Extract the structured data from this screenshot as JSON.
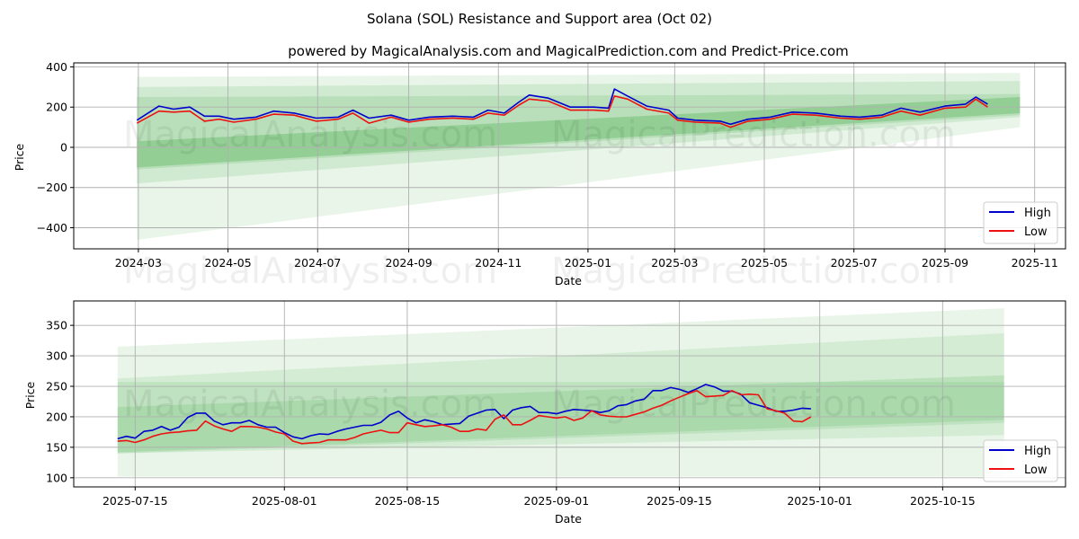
{
  "figure": {
    "suptitle": "Solana (SOL) Resistance and Support area (Oct 02)",
    "subtitle": "powered by MagicalAnalysis.com and MagicalPrediction.com and Predict-Price.com",
    "watermarks": [
      "MagicalAnalysis.com",
      "MagicalPrediction.com"
    ]
  },
  "colors": {
    "high": "#0000cc",
    "low": "#ee1111",
    "band": "#4caf50",
    "grid": "#b0b0b0"
  },
  "chart_data": [
    {
      "type": "line",
      "title": "",
      "xlabel": "Date",
      "ylabel": "Price",
      "ylim": [
        -505,
        420
      ],
      "xlim": [
        "2024-01-17",
        "2025-11-22"
      ],
      "grid": true,
      "legend": {
        "position": "lower-right",
        "entries": [
          "High",
          "Low"
        ]
      },
      "x_ticks": [
        "2024-03",
        "2024-05",
        "2024-07",
        "2024-09",
        "2024-11",
        "2025-01",
        "2025-03",
        "2025-05",
        "2025-07",
        "2025-09",
        "2025-11"
      ],
      "y_ticks": [
        400,
        200,
        0,
        -200,
        -400
      ],
      "x": [
        "2024-02-29",
        "2024-03-15",
        "2024-03-25",
        "2024-04-05",
        "2024-04-15",
        "2024-04-25",
        "2024-05-05",
        "2024-05-20",
        "2024-06-01",
        "2024-06-15",
        "2024-06-30",
        "2024-07-15",
        "2024-07-25",
        "2024-08-05",
        "2024-08-20",
        "2024-09-01",
        "2024-09-15",
        "2024-10-01",
        "2024-10-15",
        "2024-10-25",
        "2024-11-05",
        "2024-11-15",
        "2024-11-22",
        "2024-12-05",
        "2024-12-20",
        "2025-01-05",
        "2025-01-15",
        "2025-01-19",
        "2025-01-28",
        "2025-02-10",
        "2025-02-25",
        "2025-03-03",
        "2025-03-15",
        "2025-04-01",
        "2025-04-08",
        "2025-04-20",
        "2025-05-05",
        "2025-05-20",
        "2025-06-05",
        "2025-06-22",
        "2025-07-05",
        "2025-07-20",
        "2025-08-02",
        "2025-08-15",
        "2025-09-01",
        "2025-09-15",
        "2025-09-22",
        "2025-09-30"
      ],
      "series": [
        {
          "name": "High",
          "values": [
            135,
            205,
            190,
            200,
            155,
            155,
            140,
            150,
            180,
            170,
            145,
            150,
            185,
            145,
            160,
            135,
            150,
            155,
            150,
            185,
            170,
            225,
            260,
            245,
            200,
            200,
            195,
            290,
            255,
            205,
            185,
            145,
            135,
            130,
            115,
            140,
            150,
            175,
            170,
            155,
            150,
            160,
            195,
            175,
            205,
            215,
            250,
            215
          ]
        },
        {
          "name": "Low",
          "values": [
            120,
            180,
            175,
            180,
            130,
            140,
            125,
            140,
            165,
            160,
            130,
            140,
            170,
            120,
            150,
            125,
            140,
            145,
            140,
            170,
            160,
            210,
            240,
            230,
            185,
            185,
            180,
            255,
            240,
            190,
            170,
            135,
            125,
            120,
            100,
            130,
            140,
            165,
            160,
            145,
            140,
            150,
            180,
            160,
            195,
            200,
            240,
            200
          ]
        }
      ],
      "bands": [
        {
          "name": "outer-upper",
          "start": [
            "2024-02-29",
            350
          ],
          "end": [
            "2025-10-22",
            370
          ],
          "lower_start": 100,
          "lower_end": 100
        },
        {
          "name": "outer-lower",
          "start": [
            "2024-02-29",
            -460
          ],
          "end": [
            "2025-10-22",
            100
          ]
        },
        {
          "name": "mid-1",
          "upper_start": 300,
          "upper_end": 330,
          "lower_start": -180,
          "lower_end": 150
        },
        {
          "name": "mid-2",
          "upper_start": 250,
          "upper_end": 265,
          "lower_start": -110,
          "lower_end": 160
        },
        {
          "name": "core",
          "upper_start": 30,
          "upper_end": 250,
          "lower_start": -100,
          "lower_end": 170
        }
      ]
    },
    {
      "type": "line",
      "title": "",
      "xlabel": "Date",
      "ylabel": "Price",
      "ylim": [
        85,
        390
      ],
      "xlim": [
        "2025-07-08",
        "2025-10-29"
      ],
      "grid": true,
      "legend": {
        "position": "lower-right",
        "entries": [
          "High",
          "Low"
        ]
      },
      "x_ticks": [
        "2025-07-15",
        "2025-08-01",
        "2025-08-15",
        "2025-09-01",
        "2025-09-15",
        "2025-10-01",
        "2025-10-15"
      ],
      "y_ticks": [
        100,
        150,
        200,
        250,
        300,
        350
      ],
      "x": [
        "2025-07-13",
        "2025-07-14",
        "2025-07-15",
        "2025-07-16",
        "2025-07-17",
        "2025-07-18",
        "2025-07-19",
        "2025-07-20",
        "2025-07-21",
        "2025-07-22",
        "2025-07-23",
        "2025-07-24",
        "2025-07-25",
        "2025-07-26",
        "2025-07-27",
        "2025-07-28",
        "2025-07-29",
        "2025-07-30",
        "2025-07-31",
        "2025-08-01",
        "2025-08-02",
        "2025-08-03",
        "2025-08-04",
        "2025-08-05",
        "2025-08-06",
        "2025-08-07",
        "2025-08-08",
        "2025-08-09",
        "2025-08-10",
        "2025-08-11",
        "2025-08-12",
        "2025-08-13",
        "2025-08-14",
        "2025-08-15",
        "2025-08-16",
        "2025-08-17",
        "2025-08-18",
        "2025-08-19",
        "2025-08-20",
        "2025-08-21",
        "2025-08-22",
        "2025-08-23",
        "2025-08-24",
        "2025-08-25",
        "2025-08-26",
        "2025-08-27",
        "2025-08-28",
        "2025-08-29",
        "2025-08-30",
        "2025-08-31",
        "2025-09-01",
        "2025-09-02",
        "2025-09-03",
        "2025-09-04",
        "2025-09-05",
        "2025-09-06",
        "2025-09-07",
        "2025-09-08",
        "2025-09-09",
        "2025-09-10",
        "2025-09-11",
        "2025-09-12",
        "2025-09-13",
        "2025-09-14",
        "2025-09-15",
        "2025-09-16",
        "2025-09-17",
        "2025-09-18",
        "2025-09-19",
        "2025-09-20",
        "2025-09-21",
        "2025-09-22",
        "2025-09-23",
        "2025-09-24",
        "2025-09-25",
        "2025-09-26",
        "2025-09-27",
        "2025-09-28",
        "2025-09-29",
        "2025-09-30"
      ],
      "series": [
        {
          "name": "High",
          "values": [
            164,
            168,
            165,
            176,
            178,
            184,
            178,
            183,
            199,
            206,
            206,
            193,
            187,
            190,
            190,
            194,
            187,
            183,
            183,
            174,
            167,
            164,
            169,
            172,
            171,
            176,
            180,
            183,
            186,
            186,
            191,
            203,
            209,
            198,
            190,
            195,
            192,
            187,
            188,
            189,
            201,
            206,
            211,
            212,
            197,
            211,
            215,
            217,
            207,
            207,
            205,
            209,
            212,
            211,
            210,
            207,
            210,
            218,
            220,
            226,
            229,
            243,
            243,
            248,
            245,
            240,
            246,
            253,
            249,
            242,
            242,
            237,
            223,
            219,
            215,
            209,
            209,
            211,
            214,
            213
          ]
        },
        {
          "name": "Low",
          "values": [
            160,
            161,
            158,
            162,
            168,
            172,
            174,
            175,
            177,
            178,
            193,
            185,
            180,
            176,
            184,
            184,
            183,
            180,
            175,
            172,
            160,
            156,
            157,
            158,
            162,
            162,
            162,
            166,
            172,
            175,
            178,
            174,
            174,
            190,
            187,
            184,
            185,
            187,
            183,
            176,
            176,
            180,
            178,
            196,
            203,
            187,
            187,
            194,
            202,
            200,
            198,
            200,
            194,
            198,
            210,
            203,
            201,
            200,
            200,
            204,
            208,
            214,
            219,
            226,
            232,
            238,
            243,
            233,
            234,
            235,
            243,
            236,
            237,
            236,
            213,
            210,
            206,
            193,
            192,
            200
          ]
        }
      ],
      "bands": [
        {
          "name": "outer",
          "upper_start": 315,
          "upper_end": 378,
          "lower_start": 102,
          "lower_end": 102
        },
        {
          "name": "mid-1",
          "upper_start": 263,
          "upper_end": 337,
          "lower_start": 140,
          "lower_end": 170
        },
        {
          "name": "mid-2",
          "upper_start": 257,
          "upper_end": 257,
          "lower_start": 140,
          "lower_end": 190
        },
        {
          "name": "core",
          "upper_start": 216,
          "upper_end": 268,
          "lower_start": 142,
          "lower_end": 195
        }
      ]
    }
  ]
}
